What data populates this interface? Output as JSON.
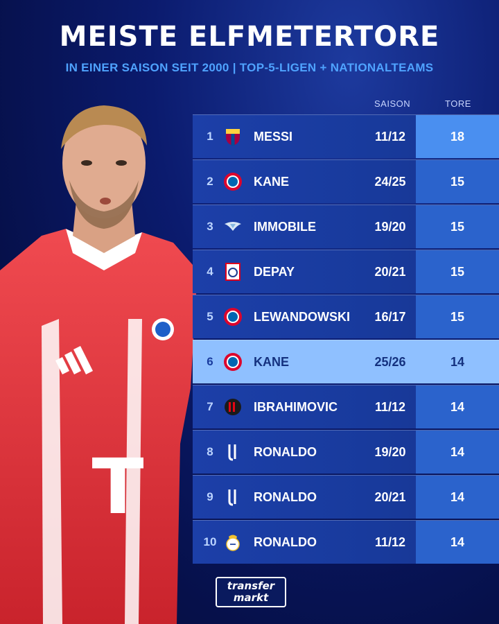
{
  "header": {
    "title": "MEISTE ELFMETERTORE",
    "subtitle": "IN EINER SAISON SEIT 2000 | TOP-5-LIGEN + NATIONALTEAMS"
  },
  "columns": {
    "season": "SAISON",
    "goals": "TORE"
  },
  "rows": [
    {
      "rank": "1",
      "club_icon": "barcelona-crest-icon",
      "name": "MESSI",
      "season": "11/12",
      "goals": "18"
    },
    {
      "rank": "2",
      "club_icon": "bayern-crest-icon",
      "name": "KANE",
      "season": "24/25",
      "goals": "15"
    },
    {
      "rank": "3",
      "club_icon": "lazio-crest-icon",
      "name": "IMMOBILE",
      "season": "19/20",
      "goals": "15"
    },
    {
      "rank": "4",
      "club_icon": "lyon-crest-icon",
      "name": "DEPAY",
      "season": "20/21",
      "goals": "15"
    },
    {
      "rank": "5",
      "club_icon": "bayern-crest-icon",
      "name": "LEWANDOWSKI",
      "season": "16/17",
      "goals": "15"
    },
    {
      "rank": "6",
      "club_icon": "bayern-crest-icon",
      "name": "KANE",
      "season": "25/26",
      "goals": "14"
    },
    {
      "rank": "7",
      "club_icon": "milan-crest-icon",
      "name": "IBRAHIMOVIC",
      "season": "11/12",
      "goals": "14"
    },
    {
      "rank": "8",
      "club_icon": "juventus-crest-icon",
      "name": "RONALDO",
      "season": "19/20",
      "goals": "14"
    },
    {
      "rank": "9",
      "club_icon": "juventus-crest-icon",
      "name": "RONALDO",
      "season": "20/21",
      "goals": "14"
    },
    {
      "rank": "10",
      "club_icon": "real-madrid-crest-icon",
      "name": "RONALDO",
      "season": "11/12",
      "goals": "14"
    }
  ],
  "brand": {
    "line1": "transfer",
    "line2": "markt"
  },
  "jersey": {
    "sponsor": "T"
  },
  "colors": {
    "accent": "#4fa3ff",
    "highlight": "#8fc0ff",
    "background": "#0b1b6e",
    "jersey": "#e8333b"
  }
}
